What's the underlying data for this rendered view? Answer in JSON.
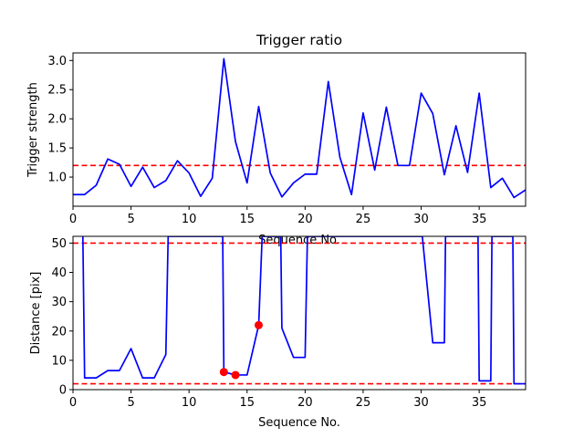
{
  "chart_data": [
    {
      "type": "line",
      "title": "Trigger ratio",
      "xlabel": "Sequence No.",
      "ylabel": "Trigger strength",
      "xlim": [
        0,
        39
      ],
      "ylim": [
        0.5,
        3.13
      ],
      "xticks": [
        "0",
        "5",
        "10",
        "15",
        "20",
        "25",
        "30",
        "35"
      ],
      "yticks": [
        "1.0",
        "1.5",
        "2.0",
        "2.5",
        "3.0"
      ],
      "grid": false,
      "line_color": "#0000ff",
      "threshold_color": "#ff0000",
      "series": [
        {
          "x": [
            0,
            1,
            2,
            3,
            4,
            5,
            6,
            7,
            8,
            9,
            10,
            11,
            12,
            13,
            14,
            15,
            16,
            17,
            18,
            19,
            20,
            21,
            22,
            23,
            24,
            25,
            26,
            27,
            28,
            29,
            30,
            31,
            32,
            33,
            34,
            35,
            36,
            37,
            38,
            39
          ],
          "values": [
            0.7,
            0.7,
            0.86,
            1.31,
            1.22,
            0.84,
            1.17,
            0.82,
            0.94,
            1.28,
            1.07,
            0.67,
            0.98,
            3.03,
            1.61,
            0.9,
            2.21,
            1.07,
            0.66,
            0.9,
            1.05,
            1.05,
            2.64,
            1.34,
            0.7,
            2.1,
            1.12,
            2.2,
            1.2,
            1.2,
            2.44,
            2.09,
            1.04,
            1.88,
            1.08,
            2.44,
            0.82,
            0.98,
            0.65,
            0.78
          ]
        }
      ],
      "hlines": [
        1.2
      ]
    },
    {
      "type": "line",
      "title": "",
      "xlabel": "Sequence No.",
      "ylabel": "Distance [pix]",
      "xlim": [
        0,
        39
      ],
      "ylim": [
        0,
        52.3
      ],
      "xticks": [
        "0",
        "5",
        "10",
        "15",
        "20",
        "25",
        "30",
        "35"
      ],
      "yticks": [
        "0",
        "10",
        "20",
        "30",
        "40",
        "50"
      ],
      "grid": false,
      "line_color": "#0000ff",
      "threshold_color": "#ff0000",
      "marker_color": "#ff0000",
      "series": [
        {
          "x": [
            0.85,
            1,
            2,
            3,
            4,
            5,
            6,
            7,
            8,
            8.2,
            12.9,
            13,
            14,
            15,
            16,
            16.3,
            17.9,
            18,
            19,
            20,
            20.2,
            30.1,
            31,
            32,
            32.1,
            34.9,
            35,
            36,
            36.1,
            37.9,
            38,
            39
          ],
          "values": [
            52.3,
            4,
            4,
            6.5,
            6.5,
            14,
            4,
            4,
            12,
            52.3,
            52.3,
            6,
            5,
            5,
            22,
            52.3,
            52.3,
            21,
            11,
            11,
            52.3,
            52.3,
            16,
            16,
            52.3,
            52.3,
            3,
            3,
            52.3,
            52.3,
            2,
            2
          ]
        }
      ],
      "markers": [
        {
          "x": 13,
          "y": 6
        },
        {
          "x": 14,
          "y": 5
        },
        {
          "x": 16,
          "y": 22
        }
      ],
      "hlines": [
        50,
        2
      ]
    }
  ]
}
